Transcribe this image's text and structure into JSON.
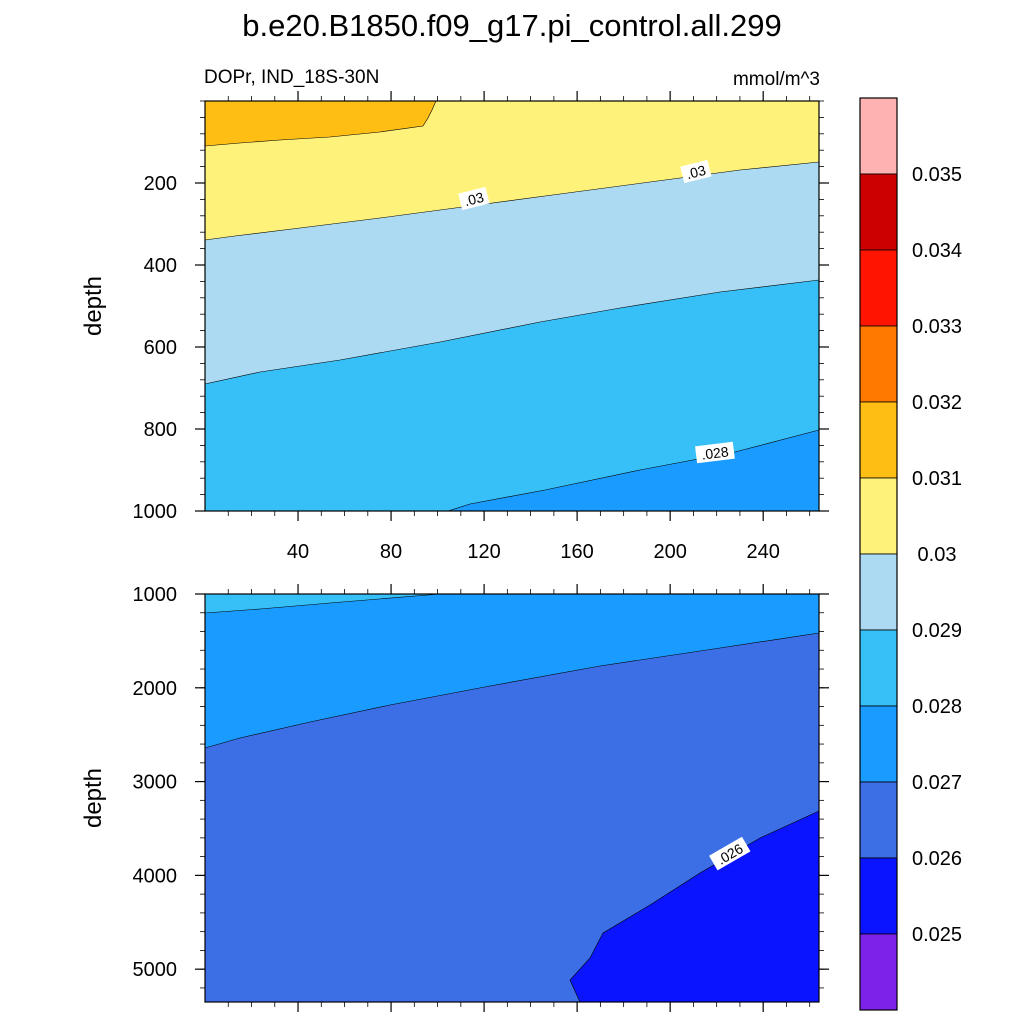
{
  "title": "b.e20.B1850.f09_g17.pi_control.all.299",
  "left_subtitle": "DOPr, IND_18S-30N",
  "right_subtitle": "mmol/m^3",
  "colors": {
    "fill_lt_0.025": "#7d22e8",
    "fill_0.025_0.026": "#0a14ff",
    "fill_0.026_0.027": "#3c6ee6",
    "fill_0.027_0.028": "#1a9bff",
    "fill_0.028_0.029": "#37c0f8",
    "fill_0.029_0.030": "#acdaf2",
    "fill_0.030_0.031": "#fff27a",
    "fill_0.031_0.032": "#ffbe14",
    "fill_0.032_0.033": "#ff7800",
    "fill_0.033_0.034": "#ff1400",
    "fill_0.034_0.035": "#cc0000",
    "fill_gt_0.035": "#ffb2b2"
  },
  "chart_data": [
    {
      "type": "heatmap",
      "panel": "upper",
      "ylabel": "depth",
      "xlabel": "",
      "xlim": [
        0,
        264
      ],
      "ylim": [
        1000,
        0
      ],
      "x_ticks": [
        "40",
        "80",
        "120",
        "160",
        "200",
        "240"
      ],
      "y_ticks": [
        "200",
        "400",
        "600",
        "800",
        "1000"
      ],
      "contour_levels": [
        0.025,
        0.026,
        0.027,
        0.028,
        0.029,
        0.03,
        0.031,
        0.032,
        0.033,
        0.034,
        0.035
      ],
      "contour_labels": [
        ".03",
        ".03",
        ".028"
      ],
      "regions": [
        {
          "range": "0.031-0.032",
          "description": "surface layer x<98, depth<110"
        },
        {
          "range": "0.030-0.031",
          "boundary_depth_at_x0": 340,
          "boundary_depth_at_x264": 150
        },
        {
          "range": "0.029-0.030",
          "boundary_depth_at_x0": 690,
          "boundary_depth_at_x264": 435
        },
        {
          "range": "0.028-0.029",
          "boundary_depth_at_x106": 1000,
          "boundary_depth_at_x264": 800
        },
        {
          "range": "0.027-0.028",
          "description": "bottom-right corner"
        }
      ]
    },
    {
      "type": "heatmap",
      "panel": "lower",
      "ylabel": "depth",
      "xlabel": "",
      "xlim": [
        0,
        264
      ],
      "ylim": [
        5350,
        1000
      ],
      "y_ticks": [
        "1000",
        "2000",
        "3000",
        "4000",
        "5000"
      ],
      "contour_levels": [
        0.025,
        0.026,
        0.027,
        0.028,
        0.029,
        0.03,
        0.031,
        0.032,
        0.033,
        0.034,
        0.035
      ],
      "contour_labels": [
        ".026"
      ],
      "regions": [
        {
          "range": "0.028-0.029",
          "description": "thin top-left sliver above ~1150 m"
        },
        {
          "range": "0.027-0.028",
          "boundary_depth_at_x0": 2700,
          "boundary_depth_at_x264": 1420
        },
        {
          "range": "0.026-0.027",
          "description": "main body"
        },
        {
          "range": "0.025-0.026",
          "description": "bottom-right, x>158, depth>3300"
        }
      ]
    }
  ],
  "colorbar": {
    "labels": [
      "0.035",
      "0.034",
      "0.033",
      "0.032",
      "0.031",
      "0.03",
      "0.029",
      "0.028",
      "0.027",
      "0.026",
      "0.025"
    ]
  }
}
